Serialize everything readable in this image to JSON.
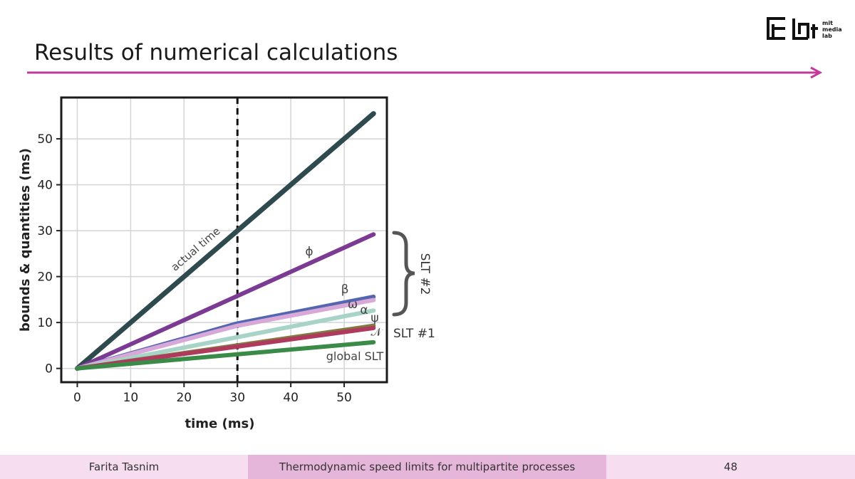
{
  "slide": {
    "title": "Results of numerical calculations",
    "accent_color": "#c0399b",
    "logo_text": [
      "mit",
      "media",
      "lab"
    ]
  },
  "footer": {
    "author": "Farita Tasnim",
    "talk_title": "Thermodynamic speed limits for multipartite processes",
    "page_number": "48"
  },
  "chart_data": {
    "type": "line",
    "xlabel": "time (ms)",
    "ylabel": "bounds & quantities (ms)",
    "xlim": [
      -3,
      58
    ],
    "ylim": [
      -3,
      59
    ],
    "xticks": [
      0,
      10,
      20,
      30,
      40,
      50
    ],
    "yticks": [
      0,
      10,
      20,
      30,
      40,
      50
    ],
    "grid": true,
    "vline": {
      "x": 30,
      "style": "dashed",
      "color": "#111111"
    },
    "series": [
      {
        "name": "actual time",
        "color": "#2f4a4f",
        "x": [
          0,
          55.5
        ],
        "y": [
          0,
          55.5
        ]
      },
      {
        "name": "ϕ",
        "color": "#7b3b93",
        "x": [
          0,
          55.5
        ],
        "y": [
          0,
          29.2
        ]
      },
      {
        "name": "β",
        "color": "#5566b0",
        "x": [
          0,
          30,
          55.5
        ],
        "y": [
          0,
          9.8,
          15.6
        ]
      },
      {
        "name": "ω",
        "color": "#d8a8d8",
        "x": [
          0,
          30,
          55.5
        ],
        "y": [
          0,
          9.3,
          14.9
        ]
      },
      {
        "name": "α",
        "color": "#a8d4c8",
        "x": [
          0,
          55.5
        ],
        "y": [
          0,
          12.6
        ]
      },
      {
        "name": "ψ",
        "color": "#7f7a40",
        "x": [
          0,
          55.5
        ],
        "y": [
          0,
          9.3
        ]
      },
      {
        "name": "𝒩",
        "color": "#b0395e",
        "x": [
          0,
          55.5
        ],
        "y": [
          0,
          8.8
        ]
      },
      {
        "name": "global SLT",
        "color": "#3a8a48",
        "x": [
          0,
          55.5
        ],
        "y": [
          0,
          5.7
        ]
      }
    ],
    "brackets": [
      {
        "label": "SLT #2"
      },
      {
        "label": "SLT #1"
      }
    ]
  }
}
